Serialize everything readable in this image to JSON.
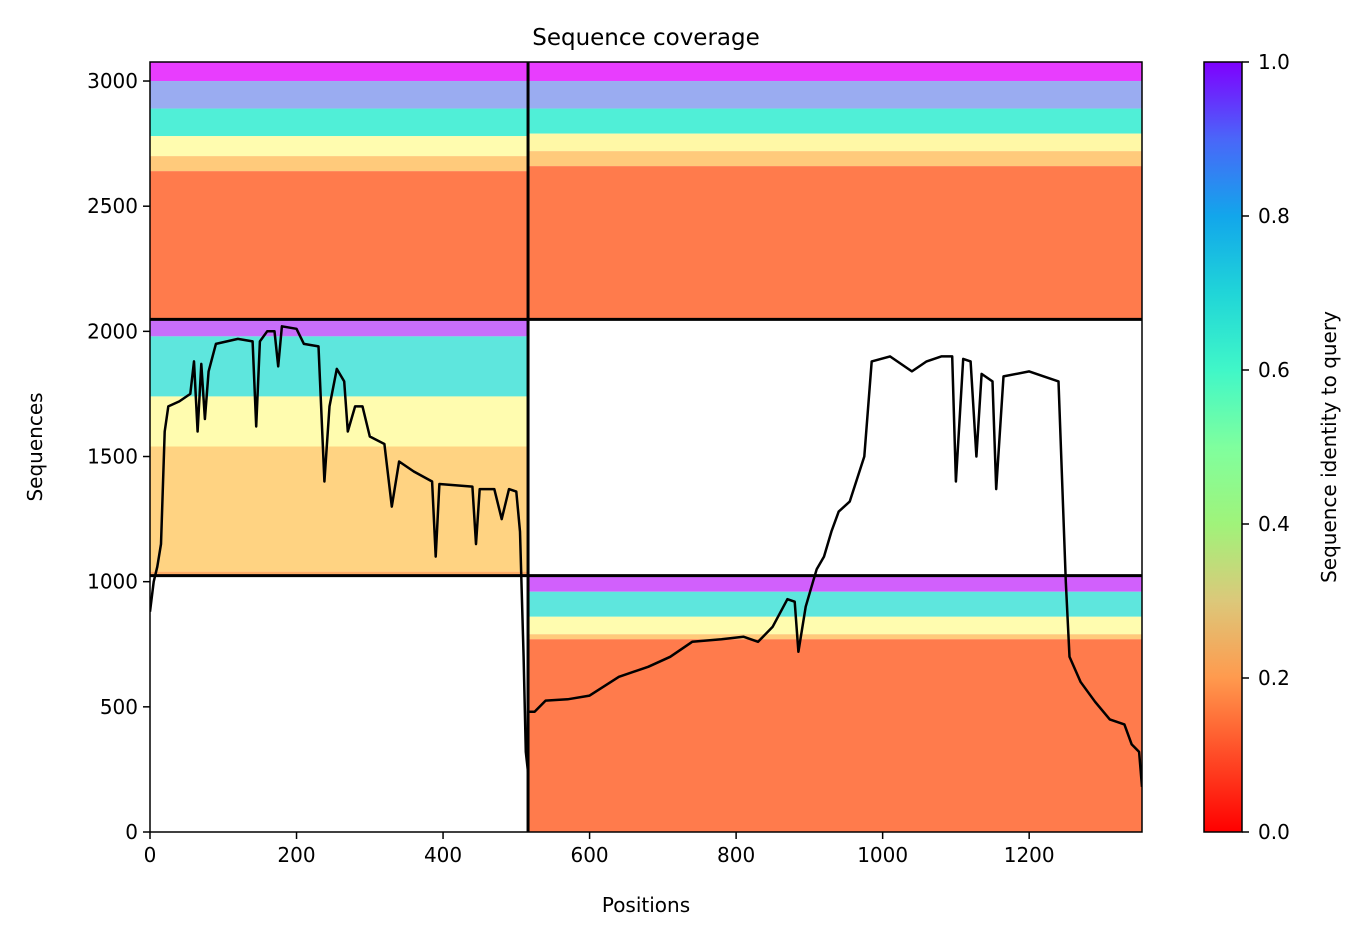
{
  "chart_data": {
    "type": "heatmap",
    "title": "Sequence coverage",
    "xlabel": "Positions",
    "ylabel": "Sequences",
    "xlim": [
      0,
      1354
    ],
    "ylim": [
      0,
      3076
    ],
    "xticks": [
      0,
      200,
      400,
      600,
      800,
      1000,
      1200
    ],
    "yticks": [
      0,
      500,
      1000,
      1500,
      2000,
      2500,
      3000
    ],
    "colorbar": {
      "label": "Sequence identity to query",
      "range": [
        0.0,
        1.0
      ],
      "ticks": [
        "0.0",
        "0.2",
        "0.4",
        "0.6",
        "0.8",
        "1.0"
      ],
      "colormap": "rainbow"
    },
    "grid": false,
    "chain_boundaries": {
      "x": 516,
      "y": [
        1024,
        2048
      ]
    },
    "blocks": [
      {
        "name": "top-left",
        "x": [
          0,
          516
        ],
        "y": [
          2048,
          3076
        ],
        "bands": [
          {
            "y": [
              3000,
              3076
            ],
            "identity": 0.95
          },
          {
            "y": [
              2890,
              3000
            ],
            "identity": 0.78
          },
          {
            "y": [
              2780,
              2890
            ],
            "identity": 0.62
          },
          {
            "y": [
              2700,
              2780
            ],
            "identity": 0.45
          },
          {
            "y": [
              2640,
              2700
            ],
            "identity": 0.28
          },
          {
            "y": [
              2048,
              2640
            ],
            "identity": 0.14
          }
        ]
      },
      {
        "name": "top-right",
        "x": [
          516,
          1354
        ],
        "y": [
          2048,
          3076
        ],
        "bands": [
          {
            "y": [
              3000,
              3076
            ],
            "identity": 0.95
          },
          {
            "y": [
              2890,
              3000
            ],
            "identity": 0.78
          },
          {
            "y": [
              2790,
              2890
            ],
            "identity": 0.62
          },
          {
            "y": [
              2720,
              2790
            ],
            "identity": 0.42
          },
          {
            "y": [
              2660,
              2720
            ],
            "identity": 0.28
          },
          {
            "y": [
              2048,
              2660
            ],
            "identity": 0.14
          }
        ]
      },
      {
        "name": "middle-left",
        "x": [
          0,
          516
        ],
        "y": [
          1024,
          2048
        ],
        "bands": [
          {
            "y": [
              1980,
              2048
            ],
            "identity": 0.88
          },
          {
            "y": [
              1740,
              1980
            ],
            "identity": 0.65
          },
          {
            "y": [
              1540,
              1740
            ],
            "identity": 0.45
          },
          {
            "y": [
              1040,
              1540
            ],
            "identity": 0.3
          },
          {
            "y": [
              1024,
              1040
            ],
            "identity": 0.22
          }
        ]
      },
      {
        "name": "bottom-right",
        "x": [
          516,
          1354
        ],
        "y": [
          0,
          1024
        ],
        "bands": [
          {
            "y": [
              960,
              1024
            ],
            "identity": 0.9
          },
          {
            "y": [
              860,
              960
            ],
            "identity": 0.65
          },
          {
            "y": [
              790,
              860
            ],
            "identity": 0.45
          },
          {
            "y": [
              770,
              790
            ],
            "identity": 0.28
          },
          {
            "y": [
              0,
              770
            ],
            "identity": 0.14
          }
        ]
      }
    ],
    "coverage_line": {
      "name": "coverage",
      "color": "#000000",
      "points": [
        [
          0,
          880
        ],
        [
          5,
          1000
        ],
        [
          10,
          1060
        ],
        [
          15,
          1150
        ],
        [
          20,
          1600
        ],
        [
          25,
          1700
        ],
        [
          40,
          1720
        ],
        [
          55,
          1750
        ],
        [
          60,
          1880
        ],
        [
          65,
          1600
        ],
        [
          70,
          1870
        ],
        [
          75,
          1650
        ],
        [
          80,
          1840
        ],
        [
          90,
          1950
        ],
        [
          120,
          1970
        ],
        [
          140,
          1960
        ],
        [
          145,
          1620
        ],
        [
          150,
          1960
        ],
        [
          160,
          2000
        ],
        [
          170,
          2000
        ],
        [
          175,
          1860
        ],
        [
          180,
          2020
        ],
        [
          200,
          2010
        ],
        [
          210,
          1950
        ],
        [
          230,
          1940
        ],
        [
          238,
          1400
        ],
        [
          245,
          1700
        ],
        [
          255,
          1850
        ],
        [
          265,
          1800
        ],
        [
          270,
          1600
        ],
        [
          280,
          1700
        ],
        [
          290,
          1700
        ],
        [
          300,
          1580
        ],
        [
          320,
          1550
        ],
        [
          330,
          1300
        ],
        [
          340,
          1480
        ],
        [
          360,
          1440
        ],
        [
          385,
          1400
        ],
        [
          390,
          1100
        ],
        [
          395,
          1390
        ],
        [
          440,
          1380
        ],
        [
          445,
          1150
        ],
        [
          450,
          1370
        ],
        [
          470,
          1370
        ],
        [
          480,
          1250
        ],
        [
          490,
          1370
        ],
        [
          500,
          1360
        ],
        [
          505,
          1200
        ],
        [
          510,
          700
        ],
        [
          513,
          320
        ],
        [
          516,
          240
        ],
        [
          516,
          480
        ],
        [
          525,
          480
        ],
        [
          540,
          525
        ],
        [
          570,
          530
        ],
        [
          600,
          545
        ],
        [
          640,
          620
        ],
        [
          680,
          660
        ],
        [
          710,
          700
        ],
        [
          740,
          760
        ],
        [
          780,
          770
        ],
        [
          810,
          780
        ],
        [
          830,
          760
        ],
        [
          850,
          820
        ],
        [
          870,
          930
        ],
        [
          880,
          920
        ],
        [
          885,
          720
        ],
        [
          895,
          900
        ],
        [
          905,
          1000
        ],
        [
          910,
          1050
        ],
        [
          920,
          1100
        ],
        [
          930,
          1200
        ],
        [
          940,
          1280
        ],
        [
          955,
          1320
        ],
        [
          975,
          1500
        ],
        [
          985,
          1880
        ],
        [
          1010,
          1900
        ],
        [
          1040,
          1840
        ],
        [
          1060,
          1880
        ],
        [
          1080,
          1900
        ],
        [
          1095,
          1900
        ],
        [
          1100,
          1400
        ],
        [
          1110,
          1890
        ],
        [
          1120,
          1880
        ],
        [
          1128,
          1500
        ],
        [
          1135,
          1830
        ],
        [
          1150,
          1800
        ],
        [
          1155,
          1370
        ],
        [
          1165,
          1820
        ],
        [
          1200,
          1840
        ],
        [
          1220,
          1820
        ],
        [
          1240,
          1800
        ],
        [
          1250,
          1000
        ],
        [
          1255,
          700
        ],
        [
          1270,
          600
        ],
        [
          1290,
          520
        ],
        [
          1310,
          450
        ],
        [
          1330,
          430
        ],
        [
          1340,
          350
        ],
        [
          1350,
          320
        ],
        [
          1354,
          180
        ]
      ]
    }
  }
}
